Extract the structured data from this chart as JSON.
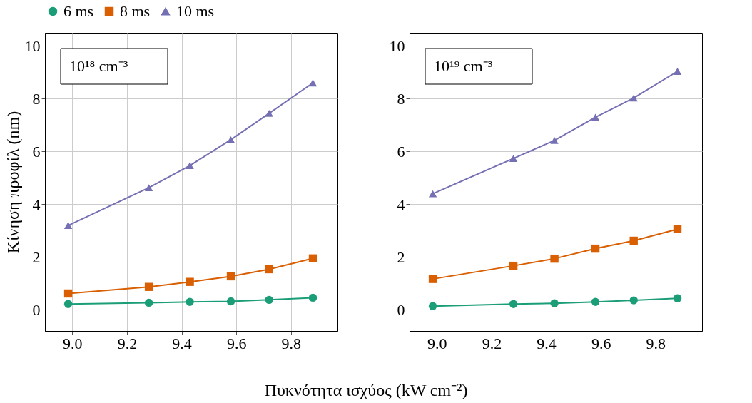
{
  "chart_data": [
    {
      "type": "line",
      "ylabel": "Κίνηση προφίλ (nm)",
      "xlabel": "Πυκνότητα ισχύος (kW cm⁻²)",
      "annotations": [
        "10¹⁸ cm⁻³"
      ],
      "xlim": [
        8.9,
        9.97
      ],
      "xticks": [
        {
          "value": 9,
          "label": "9.0"
        },
        9.2,
        9.4,
        9.6,
        9.8
      ],
      "ylim": [
        -0.8,
        10.5
      ],
      "yticks": [
        0,
        2,
        4,
        6,
        8,
        10
      ],
      "grid": true,
      "legend": "top",
      "line_style": "solid",
      "x": [
        8.985,
        9.28,
        9.43,
        9.58,
        9.72,
        9.88
      ],
      "series": [
        {
          "name": "6 ms",
          "color": "#1b9e77",
          "marker": "circle",
          "values": [
            0.22,
            0.27,
            0.3,
            0.32,
            0.38,
            0.46
          ]
        },
        {
          "name": "8 ms",
          "color": "#d95f02",
          "marker": "square",
          "values": [
            0.62,
            0.87,
            1.06,
            1.27,
            1.54,
            1.95
          ]
        },
        {
          "name": "10 ms",
          "color": "#7570b3",
          "marker": "triangle",
          "values": [
            3.2,
            4.63,
            5.47,
            6.45,
            7.45,
            8.6
          ]
        }
      ]
    },
    {
      "type": "line",
      "annotations": [
        "10¹⁹ cm⁻³"
      ],
      "xlim": [
        8.9,
        9.97
      ],
      "xticks": [
        {
          "value": 9,
          "label": "9.0"
        },
        9.2,
        9.4,
        9.6,
        9.8
      ],
      "ylim": [
        -0.8,
        10.5
      ],
      "yticks": [
        0,
        2,
        4,
        6,
        8,
        10
      ],
      "grid": true,
      "legend": "top",
      "line_style": "solid",
      "x": [
        8.985,
        9.28,
        9.43,
        9.58,
        9.72,
        9.88
      ],
      "series": [
        {
          "name": "6 ms",
          "color": "#1b9e77",
          "marker": "circle",
          "values": [
            0.14,
            0.22,
            0.25,
            0.3,
            0.36,
            0.44
          ]
        },
        {
          "name": "8 ms",
          "color": "#d95f02",
          "marker": "square",
          "values": [
            1.17,
            1.67,
            1.94,
            2.32,
            2.62,
            3.06
          ]
        },
        {
          "name": "10 ms",
          "color": "#7570b3",
          "marker": "triangle",
          "values": [
            4.4,
            5.74,
            6.42,
            7.3,
            8.03,
            9.04
          ]
        }
      ]
    }
  ]
}
